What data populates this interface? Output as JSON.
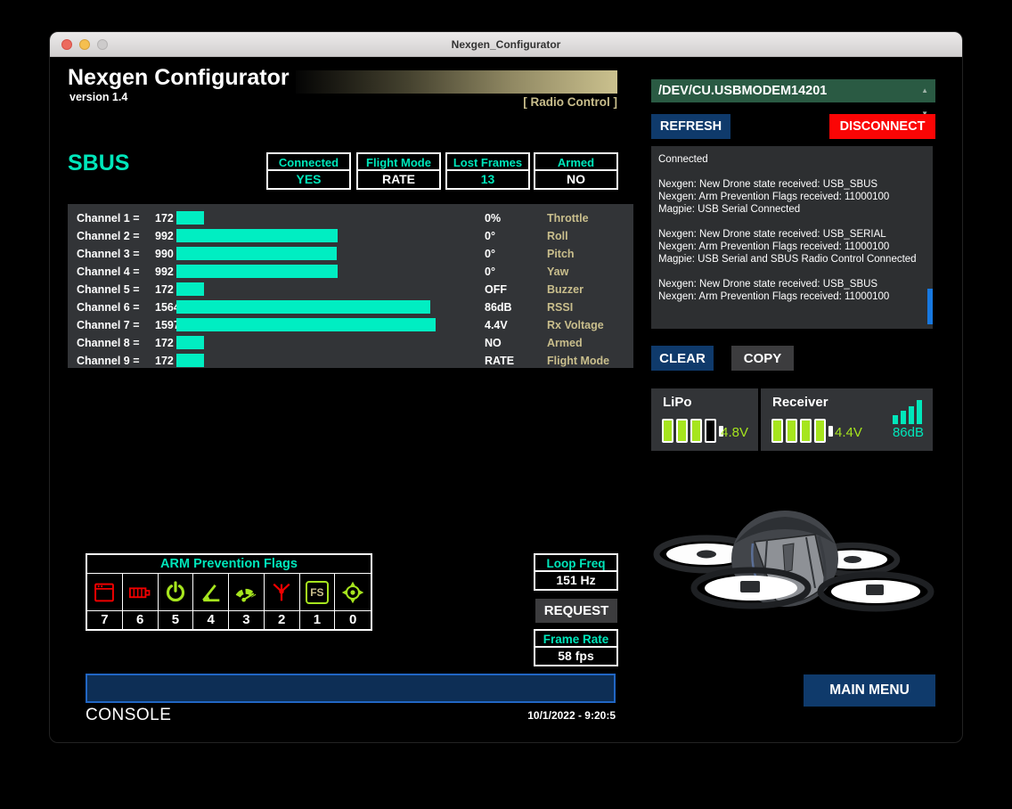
{
  "window": {
    "title": "Nexgen_Configurator"
  },
  "header": {
    "app_title": "Nexgen Configurator",
    "version": "version 1.4",
    "mode_label": "[ Radio Control  ]"
  },
  "connection": {
    "port": "/DEV/CU.USBMODEM14201",
    "refresh_label": "REFRESH",
    "disconnect_label": "DISCONNECT"
  },
  "log": {
    "text": "Connected\n\nNexgen: New Drone state received: USB_SBUS\nNexgen: Arm Prevention Flags received: 11000100\nMagpie: USB Serial Connected\n\nNexgen: New Drone state received: USB_SERIAL\nNexgen: Arm Prevention Flags received: 11000100\nMagpie: USB Serial and SBUS Radio Control Connected\n\nNexgen: New Drone state received: USB_SBUS\nNexgen: Arm Prevention Flags received: 11000100",
    "clear_label": "CLEAR",
    "copy_label": "COPY"
  },
  "protocol": {
    "name": "SBUS"
  },
  "status_boxes": [
    {
      "label": "Connected",
      "value": "YES",
      "value_color": "teal"
    },
    {
      "label": "Flight Mode",
      "value": "RATE",
      "value_color": "white"
    },
    {
      "label": "Lost Frames",
      "value": "13",
      "value_color": "teal"
    },
    {
      "label": "Armed",
      "value": "NO",
      "value_color": "white"
    }
  ],
  "channels": {
    "rows": [
      {
        "label": "Channel 1 =",
        "value": 172,
        "tel_value": "0%",
        "tel_label": "Throttle"
      },
      {
        "label": "Channel 2 =",
        "value": 992,
        "tel_value": "0°",
        "tel_label": "Roll"
      },
      {
        "label": "Channel 3 =",
        "value": 990,
        "tel_value": "0°",
        "tel_label": "Pitch"
      },
      {
        "label": "Channel 4 =",
        "value": 992,
        "tel_value": "0°",
        "tel_label": "Yaw"
      },
      {
        "label": "Channel 5 =",
        "value": 172,
        "tel_value": "OFF",
        "tel_label": "Buzzer"
      },
      {
        "label": "Channel 6 =",
        "value": 1564,
        "tel_value": "86dB",
        "tel_label": "RSSI"
      },
      {
        "label": "Channel 7 =",
        "value": 1597,
        "tel_value": "4.4V",
        "tel_label": "Rx Voltage"
      },
      {
        "label": "Channel 8 =",
        "value": 172,
        "tel_value": "NO",
        "tel_label": "Armed"
      },
      {
        "label": "Channel 9 =",
        "value": 172,
        "tel_value": "RATE",
        "tel_label": "Flight Mode"
      }
    ]
  },
  "batteries": {
    "lipo": {
      "title": "LiPo",
      "voltage": "4.8V",
      "filled": 3,
      "total": 4
    },
    "receiver": {
      "title": "Receiver",
      "voltage": "4.4V",
      "rssi": "86dB",
      "filled": 4,
      "total": 4
    }
  },
  "arm_flags": {
    "title": "ARM Prevention Flags",
    "fs_label": "FS",
    "items": [
      {
        "bit": "7",
        "state": "alert"
      },
      {
        "bit": "6",
        "state": "alert"
      },
      {
        "bit": "5",
        "state": "ok"
      },
      {
        "bit": "4",
        "state": "ok"
      },
      {
        "bit": "3",
        "state": "ok"
      },
      {
        "bit": "2",
        "state": "alert"
      },
      {
        "bit": "1",
        "state": "ok"
      },
      {
        "bit": "0",
        "state": "ok"
      }
    ]
  },
  "loop_freq": {
    "label": "Loop Freq",
    "value": "151 Hz"
  },
  "request_label": "REQUEST",
  "frame_rate": {
    "label": "Frame Rate",
    "value": "58 fps"
  },
  "footer": {
    "console_label": "CONSOLE",
    "timestamp": "10/1/2022 - 9:20:5",
    "main_menu_label": "MAIN MENU"
  },
  "colors": {
    "teal": "#00e7bb",
    "tan": "#c9be8c",
    "lime": "#a6e51e",
    "navy": "#0f3a6b",
    "red": "#fb0505"
  }
}
